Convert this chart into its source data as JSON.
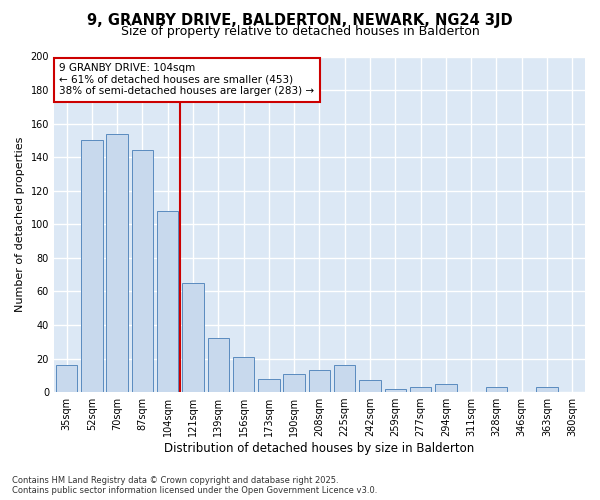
{
  "title1": "9, GRANBY DRIVE, BALDERTON, NEWARK, NG24 3JD",
  "title2": "Size of property relative to detached houses in Balderton",
  "xlabel": "Distribution of detached houses by size in Balderton",
  "ylabel": "Number of detached properties",
  "categories": [
    "35sqm",
    "52sqm",
    "70sqm",
    "87sqm",
    "104sqm",
    "121sqm",
    "139sqm",
    "156sqm",
    "173sqm",
    "190sqm",
    "208sqm",
    "225sqm",
    "242sqm",
    "259sqm",
    "277sqm",
    "294sqm",
    "311sqm",
    "328sqm",
    "346sqm",
    "363sqm",
    "380sqm"
  ],
  "values": [
    16,
    150,
    154,
    144,
    108,
    65,
    32,
    21,
    8,
    11,
    13,
    16,
    7,
    2,
    3,
    5,
    0,
    3,
    0,
    3,
    0
  ],
  "bar_color": "#c8d9ed",
  "bar_edge_color": "#5a8bbf",
  "vline_x_index": 4,
  "vline_color": "#cc0000",
  "annotation_line1": "9 GRANBY DRIVE: 104sqm",
  "annotation_line2": "← 61% of detached houses are smaller (453)",
  "annotation_line3": "38% of semi-detached houses are larger (283) →",
  "annotation_box_color": "#ffffff",
  "annotation_box_edge": "#cc0000",
  "ylim": [
    0,
    200
  ],
  "yticks": [
    0,
    20,
    40,
    60,
    80,
    100,
    120,
    140,
    160,
    180,
    200
  ],
  "plot_bg_color": "#dce8f5",
  "fig_bg_color": "#ffffff",
  "grid_color": "#ffffff",
  "footnote": "Contains HM Land Registry data © Crown copyright and database right 2025.\nContains public sector information licensed under the Open Government Licence v3.0.",
  "title1_fontsize": 10.5,
  "title2_fontsize": 9,
  "tick_fontsize": 7,
  "ylabel_fontsize": 8,
  "xlabel_fontsize": 8.5,
  "annot_fontsize": 7.5,
  "footnote_fontsize": 6
}
